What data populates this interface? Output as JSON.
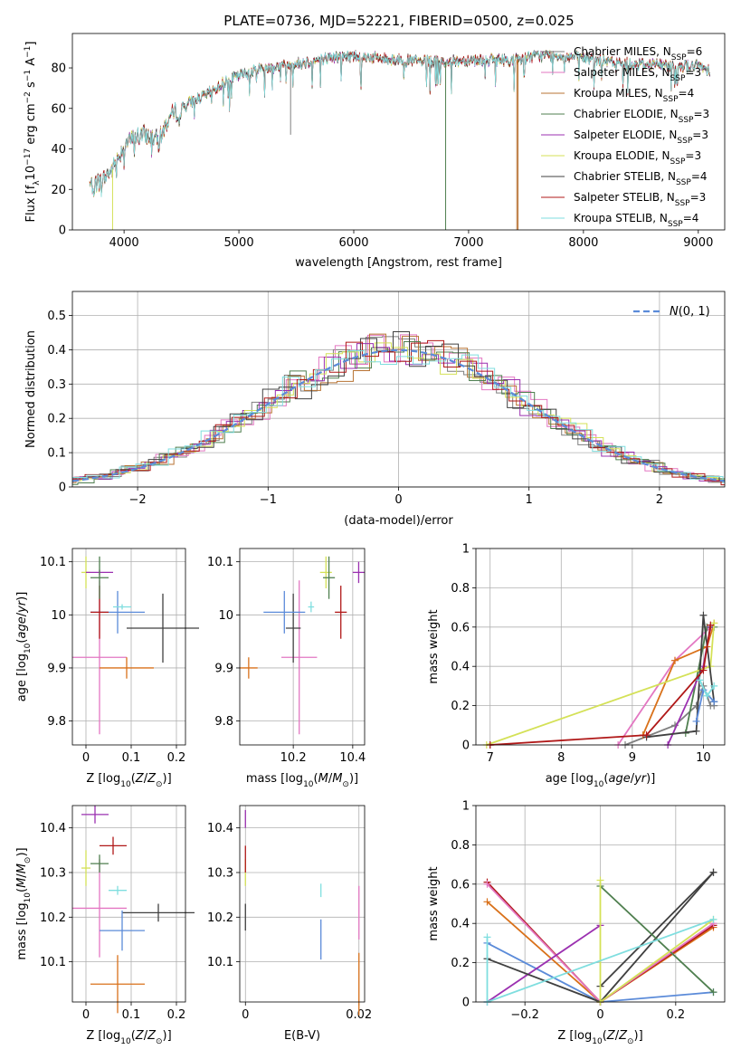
{
  "figure_title": "PLATE=0736, MJD=52221, FIBERID=0500, z=0.025",
  "colors": {
    "chabrier_miles": "#7f7f7f",
    "salpeter_miles": "#e377c2",
    "kroupa_miles": "#b87333",
    "chabrier_elodie": "#4f7f4f",
    "salpeter_elodie": "#9b30b0",
    "kroupa_elodie": "#d4e157",
    "chabrier_stelib": "#404040",
    "salpeter_stelib": "#b01818",
    "kroupa_stelib": "#7fdedf",
    "normal": "#5b8bd9"
  },
  "chart_data": [
    {
      "id": "spectrum",
      "type": "line",
      "xlabel": "wavelength [Angstrom, rest frame]",
      "ylabel": "Flux [f_λ 10^-17 erg cm^-2 s^-1 A^-1]",
      "xlim": [
        3550,
        9230
      ],
      "ylim": [
        0,
        97
      ],
      "xticks": [
        4000,
        5000,
        6000,
        7000,
        8000,
        9000
      ],
      "yticks": [
        0,
        20,
        40,
        60,
        80
      ],
      "grid": false,
      "legend": "upper right",
      "series": [
        {
          "name": "Chabrier MILES, N_SSP=6",
          "color": "#7f7f7f"
        },
        {
          "name": "Salpeter MILES, N_SSP=3",
          "color": "#e377c2"
        },
        {
          "name": "Kroupa MILES, N_SSP=4",
          "color": "#b87333"
        },
        {
          "name": "Chabrier ELODIE, N_SSP=3",
          "color": "#4f7f4f"
        },
        {
          "name": "Salpeter ELODIE, N_SSP=3",
          "color": "#9b30b0"
        },
        {
          "name": "Kroupa ELODIE, N_SSP=3",
          "color": "#d4e157"
        },
        {
          "name": "Chabrier STELIB, N_SSP=4",
          "color": "#404040"
        },
        {
          "name": "Salpeter STELIB, N_SSP=3",
          "color": "#b01818"
        },
        {
          "name": "Kroupa STELIB, N_SSP=4",
          "color": "#7fdedf"
        }
      ],
      "continuum": {
        "x": [
          3700,
          3800,
          3900,
          4000,
          4100,
          4200,
          4300,
          4400,
          4500,
          4600,
          4700,
          4800,
          4900,
          5000,
          5100,
          5200,
          5400,
          5600,
          5800,
          6000,
          6200,
          6400,
          6600,
          6800,
          7000,
          7200,
          7400,
          7600,
          7800,
          8000,
          8200,
          8400,
          8600,
          8800,
          9000,
          9100
        ],
        "y": [
          22,
          24,
          30,
          42,
          46,
          47,
          44,
          56,
          60,
          64,
          66,
          70,
          74,
          76,
          78,
          80,
          81,
          83,
          85,
          86,
          85,
          84,
          83,
          83,
          84,
          84,
          84,
          86,
          86,
          85,
          83,
          82,
          82,
          81,
          81,
          79
        ]
      },
      "spikes": [
        {
          "series": 0,
          "x": 5450,
          "y": 47
        },
        {
          "series": 5,
          "x": 3900,
          "y": 0
        },
        {
          "series": 3,
          "x": 6800,
          "y": 0
        },
        {
          "series": 2,
          "x": 7420,
          "y": 0
        },
        {
          "series": 2,
          "x": 7430,
          "y": 0
        }
      ]
    },
    {
      "id": "residuals",
      "type": "histogram",
      "xlabel": "(data-model)/error",
      "ylabel": "Normed distribution",
      "xlim": [
        -2.5,
        2.5
      ],
      "ylim": [
        0,
        0.57
      ],
      "xticks": [
        -2,
        -1,
        0,
        1,
        2
      ],
      "yticks": [
        0.0,
        0.1,
        0.2,
        0.3,
        0.4,
        0.5
      ],
      "grid": true,
      "legend": "upper right",
      "reference": {
        "name": "N(0,1)",
        "color": "#5b8bd9"
      },
      "bin_width": 0.125
    },
    {
      "id": "age-vs-Z",
      "type": "errorbar",
      "xlabel": "Z [log10(Z/Z_sun)]",
      "ylabel": "age [log10(age/yr)]",
      "xlim": [
        -0.03,
        0.22
      ],
      "ylim": [
        9.755,
        10.125
      ],
      "xticks": [
        0.0,
        0.1,
        0.2
      ],
      "yticks": [
        9.8,
        9.9,
        10.0,
        10.1
      ],
      "grid": true,
      "points": [
        {
          "x": 0.03,
          "xerr": 0.06,
          "y": 9.92,
          "yerr": 0.145,
          "color": "#e377c2"
        },
        {
          "x": 0.09,
          "xerr": 0.06,
          "y": 9.9,
          "yerr": 0.02,
          "color": "#d9711a"
        },
        {
          "x": 0.17,
          "xerr": 0.08,
          "y": 9.975,
          "yerr": 0.065,
          "color": "#404040"
        },
        {
          "x": 0.07,
          "xerr": 0.06,
          "y": 10.005,
          "yerr": 0.04,
          "color": "#5b8bd9"
        },
        {
          "x": 0.08,
          "xerr": 0.02,
          "y": 10.015,
          "yerr": 0.005,
          "color": "#7fdedf"
        },
        {
          "x": 0.03,
          "xerr": 0.02,
          "y": 10.005,
          "yerr": 0.05,
          "color": "#b01818"
        },
        {
          "x": 0.0,
          "xerr": 0.01,
          "y": 10.08,
          "yerr": 0.03,
          "color": "#d4e157"
        },
        {
          "x": 0.03,
          "xerr": 0.03,
          "y": 10.08,
          "yerr": 0.005,
          "color": "#9b30b0"
        },
        {
          "x": 0.03,
          "xerr": 0.02,
          "y": 10.07,
          "yerr": 0.04,
          "color": "#4f7f4f"
        }
      ]
    },
    {
      "id": "age-vs-mass",
      "type": "errorbar",
      "xlabel": "mass [log10(M/M_sun)]",
      "ylabel": "",
      "xlim": [
        10.02,
        10.44
      ],
      "ylim": [
        9.755,
        10.125
      ],
      "xticks": [
        10.2,
        10.4
      ],
      "yticks": [
        9.8,
        9.9,
        10.0,
        10.1
      ],
      "grid": true,
      "points": [
        {
          "x": 10.22,
          "xerr": 0.06,
          "y": 9.92,
          "yerr": 0.145,
          "color": "#e377c2"
        },
        {
          "x": 10.05,
          "xerr": 0.03,
          "y": 9.9,
          "yerr": 0.02,
          "color": "#d9711a"
        },
        {
          "x": 10.2,
          "xerr": 0.025,
          "y": 9.975,
          "yerr": 0.065,
          "color": "#404040"
        },
        {
          "x": 10.17,
          "xerr": 0.07,
          "y": 10.005,
          "yerr": 0.04,
          "color": "#5b8bd9"
        },
        {
          "x": 10.26,
          "xerr": 0.01,
          "y": 10.015,
          "yerr": 0.01,
          "color": "#7fdedf"
        },
        {
          "x": 10.36,
          "xerr": 0.02,
          "y": 10.005,
          "yerr": 0.05,
          "color": "#b01818"
        },
        {
          "x": 10.31,
          "xerr": 0.02,
          "y": 10.08,
          "yerr": 0.03,
          "color": "#d4e157"
        },
        {
          "x": 10.42,
          "xerr": 0.02,
          "y": 10.08,
          "yerr": 0.02,
          "color": "#9b30b0"
        },
        {
          "x": 10.32,
          "xerr": 0.02,
          "y": 10.07,
          "yerr": 0.04,
          "color": "#4f7f4f"
        }
      ]
    },
    {
      "id": "weight-vs-age",
      "type": "line",
      "xlabel": "age [log10(age/yr)]",
      "ylabel": "mass weight",
      "xlim": [
        6.8,
        10.3
      ],
      "ylim": [
        0,
        1.0
      ],
      "xticks": [
        7,
        8,
        9,
        10
      ],
      "yticks": [
        0.0,
        0.2,
        0.4,
        0.6,
        0.8,
        1.0
      ],
      "grid": true,
      "series": [
        {
          "color": "#7f7f7f",
          "x": [
            8.9,
            9.6,
            9.9,
            10.0,
            10.1,
            10.15
          ],
          "y": [
            0.0,
            0.1,
            0.2,
            0.3,
            0.2,
            0.2
          ]
        },
        {
          "color": "#e377c2",
          "x": [
            8.8,
            9.6,
            10.1
          ],
          "y": [
            0.0,
            0.43,
            0.6
          ]
        },
        {
          "color": "#d9711a",
          "x": [
            9.15,
            9.6,
            10.05,
            10.15
          ],
          "y": [
            0.05,
            0.43,
            0.5,
            0.62
          ]
        },
        {
          "color": "#4f7f4f",
          "x": [
            9.75,
            10.05,
            10.15
          ],
          "y": [
            0.06,
            0.6,
            0.6
          ]
        },
        {
          "color": "#9b30b0",
          "x": [
            9.5,
            10.0,
            10.1
          ],
          "y": [
            0.0,
            0.4,
            0.6
          ]
        },
        {
          "color": "#d4e157",
          "x": [
            6.95,
            10.1,
            10.15
          ],
          "y": [
            0.0,
            0.4,
            0.62
          ]
        },
        {
          "color": "#404040",
          "x": [
            9.2,
            9.9,
            10.0,
            10.15
          ],
          "y": [
            0.04,
            0.07,
            0.66,
            0.22
          ]
        },
        {
          "color": "#b01818",
          "x": [
            7.0,
            9.2,
            10.0,
            10.1
          ],
          "y": [
            0.0,
            0.05,
            0.38,
            0.61
          ]
        },
        {
          "color": "#5b8bd9",
          "x": [
            9.9,
            10.0,
            10.15
          ],
          "y": [
            0.12,
            0.28,
            0.22
          ]
        },
        {
          "color": "#7fdedf",
          "x": [
            9.95,
            10.05,
            10.15
          ],
          "y": [
            0.33,
            0.25,
            0.3
          ]
        }
      ]
    },
    {
      "id": "mass-vs-Z",
      "type": "errorbar",
      "xlabel": "Z [log10(Z/Z_sun)]",
      "ylabel": "mass [log10(M/M_sun)]",
      "xlim": [
        -0.03,
        0.22
      ],
      "ylim": [
        10.01,
        10.45
      ],
      "xticks": [
        0.0,
        0.1,
        0.2
      ],
      "yticks": [
        10.1,
        10.2,
        10.3,
        10.4
      ],
      "grid": true,
      "points": [
        {
          "x": 0.03,
          "xerr": 0.06,
          "y": 10.22,
          "yerr": 0.11,
          "color": "#e377c2"
        },
        {
          "x": 0.07,
          "xerr": 0.06,
          "y": 10.05,
          "yerr": 0.065,
          "color": "#d9711a"
        },
        {
          "x": 0.16,
          "xerr": 0.08,
          "y": 10.21,
          "yerr": 0.02,
          "color": "#404040"
        },
        {
          "x": 0.08,
          "xerr": 0.05,
          "y": 10.17,
          "yerr": 0.045,
          "color": "#5b8bd9"
        },
        {
          "x": 0.07,
          "xerr": 0.02,
          "y": 10.26,
          "yerr": 0.01,
          "color": "#7fdedf"
        },
        {
          "x": 0.06,
          "xerr": 0.03,
          "y": 10.36,
          "yerr": 0.02,
          "color": "#b01818"
        },
        {
          "x": 0.0,
          "xerr": 0.01,
          "y": 10.31,
          "yerr": 0.04,
          "color": "#d4e157"
        },
        {
          "x": 0.02,
          "xerr": 0.03,
          "y": 10.43,
          "yerr": 0.02,
          "color": "#9b30b0"
        },
        {
          "x": 0.03,
          "xerr": 0.02,
          "y": 10.32,
          "yerr": 0.02,
          "color": "#4f7f4f"
        }
      ]
    },
    {
      "id": "mass-vs-EBV",
      "type": "errorbar",
      "xlabel": "E(B-V)",
      "ylabel": "",
      "xlim": [
        -0.001,
        0.021
      ],
      "ylim": [
        10.01,
        10.45
      ],
      "xticks": [
        0.0,
        0.02
      ],
      "yticks": [
        10.1,
        10.2,
        10.3,
        10.4
      ],
      "grid": true,
      "points": [
        {
          "x": 0.0,
          "y": 10.2,
          "yerr": 0.03,
          "color": "#404040"
        },
        {
          "x": 0.0,
          "y": 10.3,
          "yerr": 0.03,
          "color": "#d4e157"
        },
        {
          "x": 0.0,
          "y": 10.33,
          "yerr": 0.03,
          "color": "#b01818"
        },
        {
          "x": 0.0,
          "y": 10.42,
          "yerr": 0.02,
          "color": "#9b30b0"
        },
        {
          "x": 0.0133,
          "y": 10.15,
          "yerr": 0.045,
          "color": "#5b8bd9"
        },
        {
          "x": 0.0133,
          "y": 10.26,
          "yerr": 0.015,
          "color": "#7fdedf"
        },
        {
          "x": 0.02,
          "y": 10.21,
          "yerr": 0.06,
          "color": "#e377c2"
        },
        {
          "x": 0.02,
          "y": 10.05,
          "yerr": 0.07,
          "color": "#d9711a"
        }
      ]
    },
    {
      "id": "weight-vs-Z",
      "type": "line",
      "xlabel": "Z [log10(Z/Z_sun)]",
      "ylabel": "mass weight",
      "xlim": [
        -0.33,
        0.33
      ],
      "ylim": [
        0,
        1.0
      ],
      "xticks": [
        -0.2,
        0.0,
        0.2
      ],
      "yticks": [
        0.0,
        0.2,
        0.4,
        0.6,
        0.8,
        1.0
      ],
      "grid": true,
      "series": [
        {
          "color": "#5b8bd9",
          "x": [
            -0.3,
            0.0,
            0.3
          ],
          "y": [
            0.3,
            0.0,
            0.05
          ]
        },
        {
          "color": "#d9711a",
          "x": [
            -0.3,
            0.0,
            0.3
          ],
          "y": [
            0.51,
            0.0,
            0.38
          ]
        },
        {
          "color": "#b01818",
          "x": [
            -0.3,
            0.0,
            0.3
          ],
          "y": [
            0.61,
            0.0,
            0.39
          ]
        },
        {
          "color": "#e377c2",
          "x": [
            -0.3,
            0.0,
            0.3
          ],
          "y": [
            0.6,
            0.0,
            0.4
          ]
        },
        {
          "color": "#9b30b0",
          "x": [
            -0.3,
            0.0
          ],
          "y": [
            0.0,
            0.39
          ]
        },
        {
          "color": "#404040",
          "x": [
            -0.3,
            0.0,
            0.3
          ],
          "y": [
            0.22,
            0.0,
            0.66
          ]
        },
        {
          "color": "#404040",
          "x": [
            0.0,
            0.3
          ],
          "y": [
            0.08,
            0.66
          ]
        },
        {
          "color": "#4f7f4f",
          "x": [
            0.0,
            0.3
          ],
          "y": [
            0.59,
            0.05
          ]
        },
        {
          "color": "#d4e157",
          "x": [
            0.0,
            0.0,
            0.3
          ],
          "y": [
            0.62,
            0.0,
            0.42
          ]
        },
        {
          "color": "#7fdedf",
          "x": [
            -0.3,
            0.3
          ],
          "y": [
            0.0,
            0.42
          ]
        },
        {
          "color": "#7fdedf",
          "x": [
            -0.3,
            -0.3
          ],
          "y": [
            0.33,
            0.0
          ]
        }
      ]
    }
  ]
}
